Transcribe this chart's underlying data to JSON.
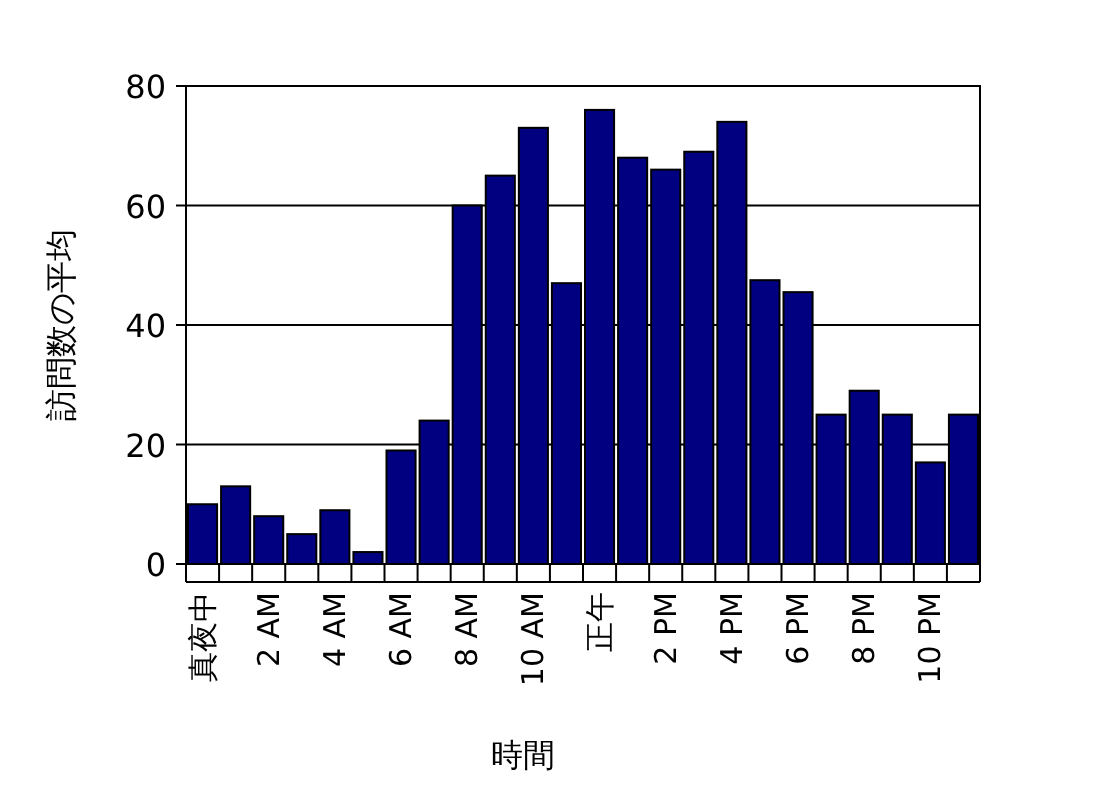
{
  "chart_data": {
    "type": "bar",
    "xlabel": "時間",
    "ylabel": "訪問数の平均",
    "categories": [
      "真夜中",
      null,
      "2 AM",
      null,
      "4 AM",
      null,
      "6 AM",
      null,
      "8 AM",
      null,
      "10 AM",
      null,
      "正午",
      null,
      "2 PM",
      null,
      "4 PM",
      null,
      "6 PM",
      null,
      "8 PM",
      null,
      "10 PM",
      null
    ],
    "values": [
      10,
      13,
      8,
      5,
      9,
      2,
      19,
      24,
      60,
      65,
      73,
      47,
      76,
      68,
      66,
      69,
      74,
      47.5,
      45.5,
      25,
      29,
      25,
      17,
      25
    ],
    "color": "#000080",
    "ylim": [
      0,
      80
    ],
    "yticks": [
      0,
      20,
      40,
      60,
      80
    ],
    "grid": "y"
  }
}
